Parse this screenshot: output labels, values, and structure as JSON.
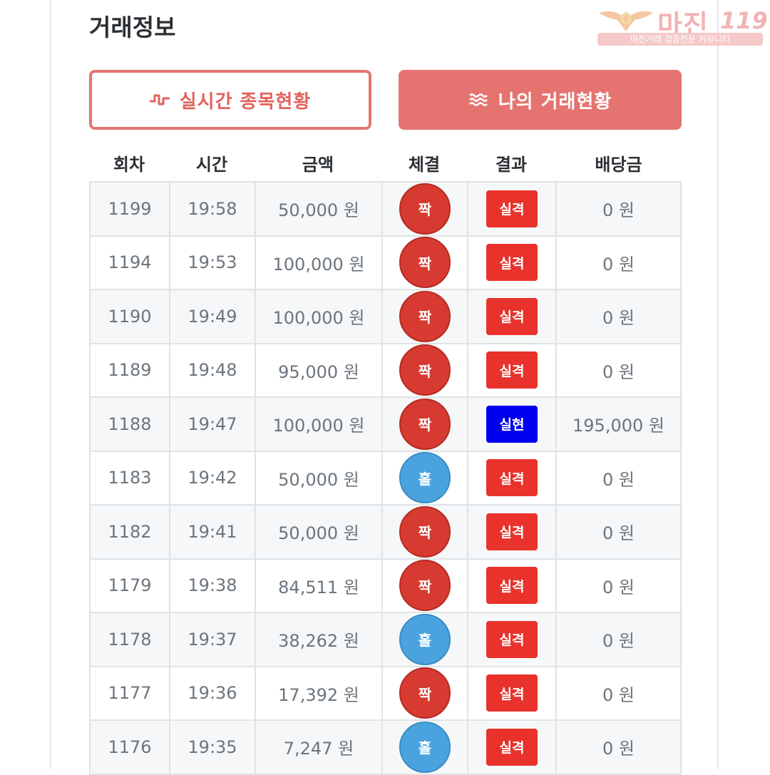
{
  "page": {
    "title": "거래정보"
  },
  "watermark": {
    "brand": "마진",
    "number": "119",
    "tagline": "마진거래 검증전문 커뮤니티"
  },
  "tabs": [
    {
      "label": "실시간 종목현황",
      "icon": "pulse-icon",
      "active": false
    },
    {
      "label": "나의 거래현황",
      "icon": "waves-icon",
      "active": true
    }
  ],
  "table": {
    "headers": [
      "회차",
      "시간",
      "금액",
      "체결",
      "결과",
      "배당금"
    ],
    "rows": [
      {
        "round": "1199",
        "time": "19:58",
        "amount": "50,000 원",
        "pick": "짝",
        "pick_type": "even",
        "result": "실격",
        "result_type": "lose",
        "payout": "0 원"
      },
      {
        "round": "1194",
        "time": "19:53",
        "amount": "100,000 원",
        "pick": "짝",
        "pick_type": "even",
        "result": "실격",
        "result_type": "lose",
        "payout": "0 원"
      },
      {
        "round": "1190",
        "time": "19:49",
        "amount": "100,000 원",
        "pick": "짝",
        "pick_type": "even",
        "result": "실격",
        "result_type": "lose",
        "payout": "0 원"
      },
      {
        "round": "1189",
        "time": "19:48",
        "amount": "95,000 원",
        "pick": "짝",
        "pick_type": "even",
        "result": "실격",
        "result_type": "lose",
        "payout": "0 원"
      },
      {
        "round": "1188",
        "time": "19:47",
        "amount": "100,000 원",
        "pick": "짝",
        "pick_type": "even",
        "result": "실현",
        "result_type": "win",
        "payout": "195,000 원"
      },
      {
        "round": "1183",
        "time": "19:42",
        "amount": "50,000 원",
        "pick": "홀",
        "pick_type": "odd",
        "result": "실격",
        "result_type": "lose",
        "payout": "0 원"
      },
      {
        "round": "1182",
        "time": "19:41",
        "amount": "50,000 원",
        "pick": "짝",
        "pick_type": "even",
        "result": "실격",
        "result_type": "lose",
        "payout": "0 원"
      },
      {
        "round": "1179",
        "time": "19:38",
        "amount": "84,511 원",
        "pick": "짝",
        "pick_type": "even",
        "result": "실격",
        "result_type": "lose",
        "payout": "0 원"
      },
      {
        "round": "1178",
        "time": "19:37",
        "amount": "38,262 원",
        "pick": "홀",
        "pick_type": "odd",
        "result": "실격",
        "result_type": "lose",
        "payout": "0 원"
      },
      {
        "round": "1177",
        "time": "19:36",
        "amount": "17,392 원",
        "pick": "짝",
        "pick_type": "even",
        "result": "실격",
        "result_type": "lose",
        "payout": "0 원"
      },
      {
        "round": "1176",
        "time": "19:35",
        "amount": "7,247 원",
        "pick": "홀",
        "pick_type": "odd",
        "result": "실격",
        "result_type": "lose",
        "payout": "0 원"
      }
    ]
  },
  "colors": {
    "accent": "#e57470",
    "even_ball": "#d63a30",
    "odd_ball": "#4aa3df",
    "lose_badge": "#e8322b",
    "win_badge": "#0000ee"
  }
}
